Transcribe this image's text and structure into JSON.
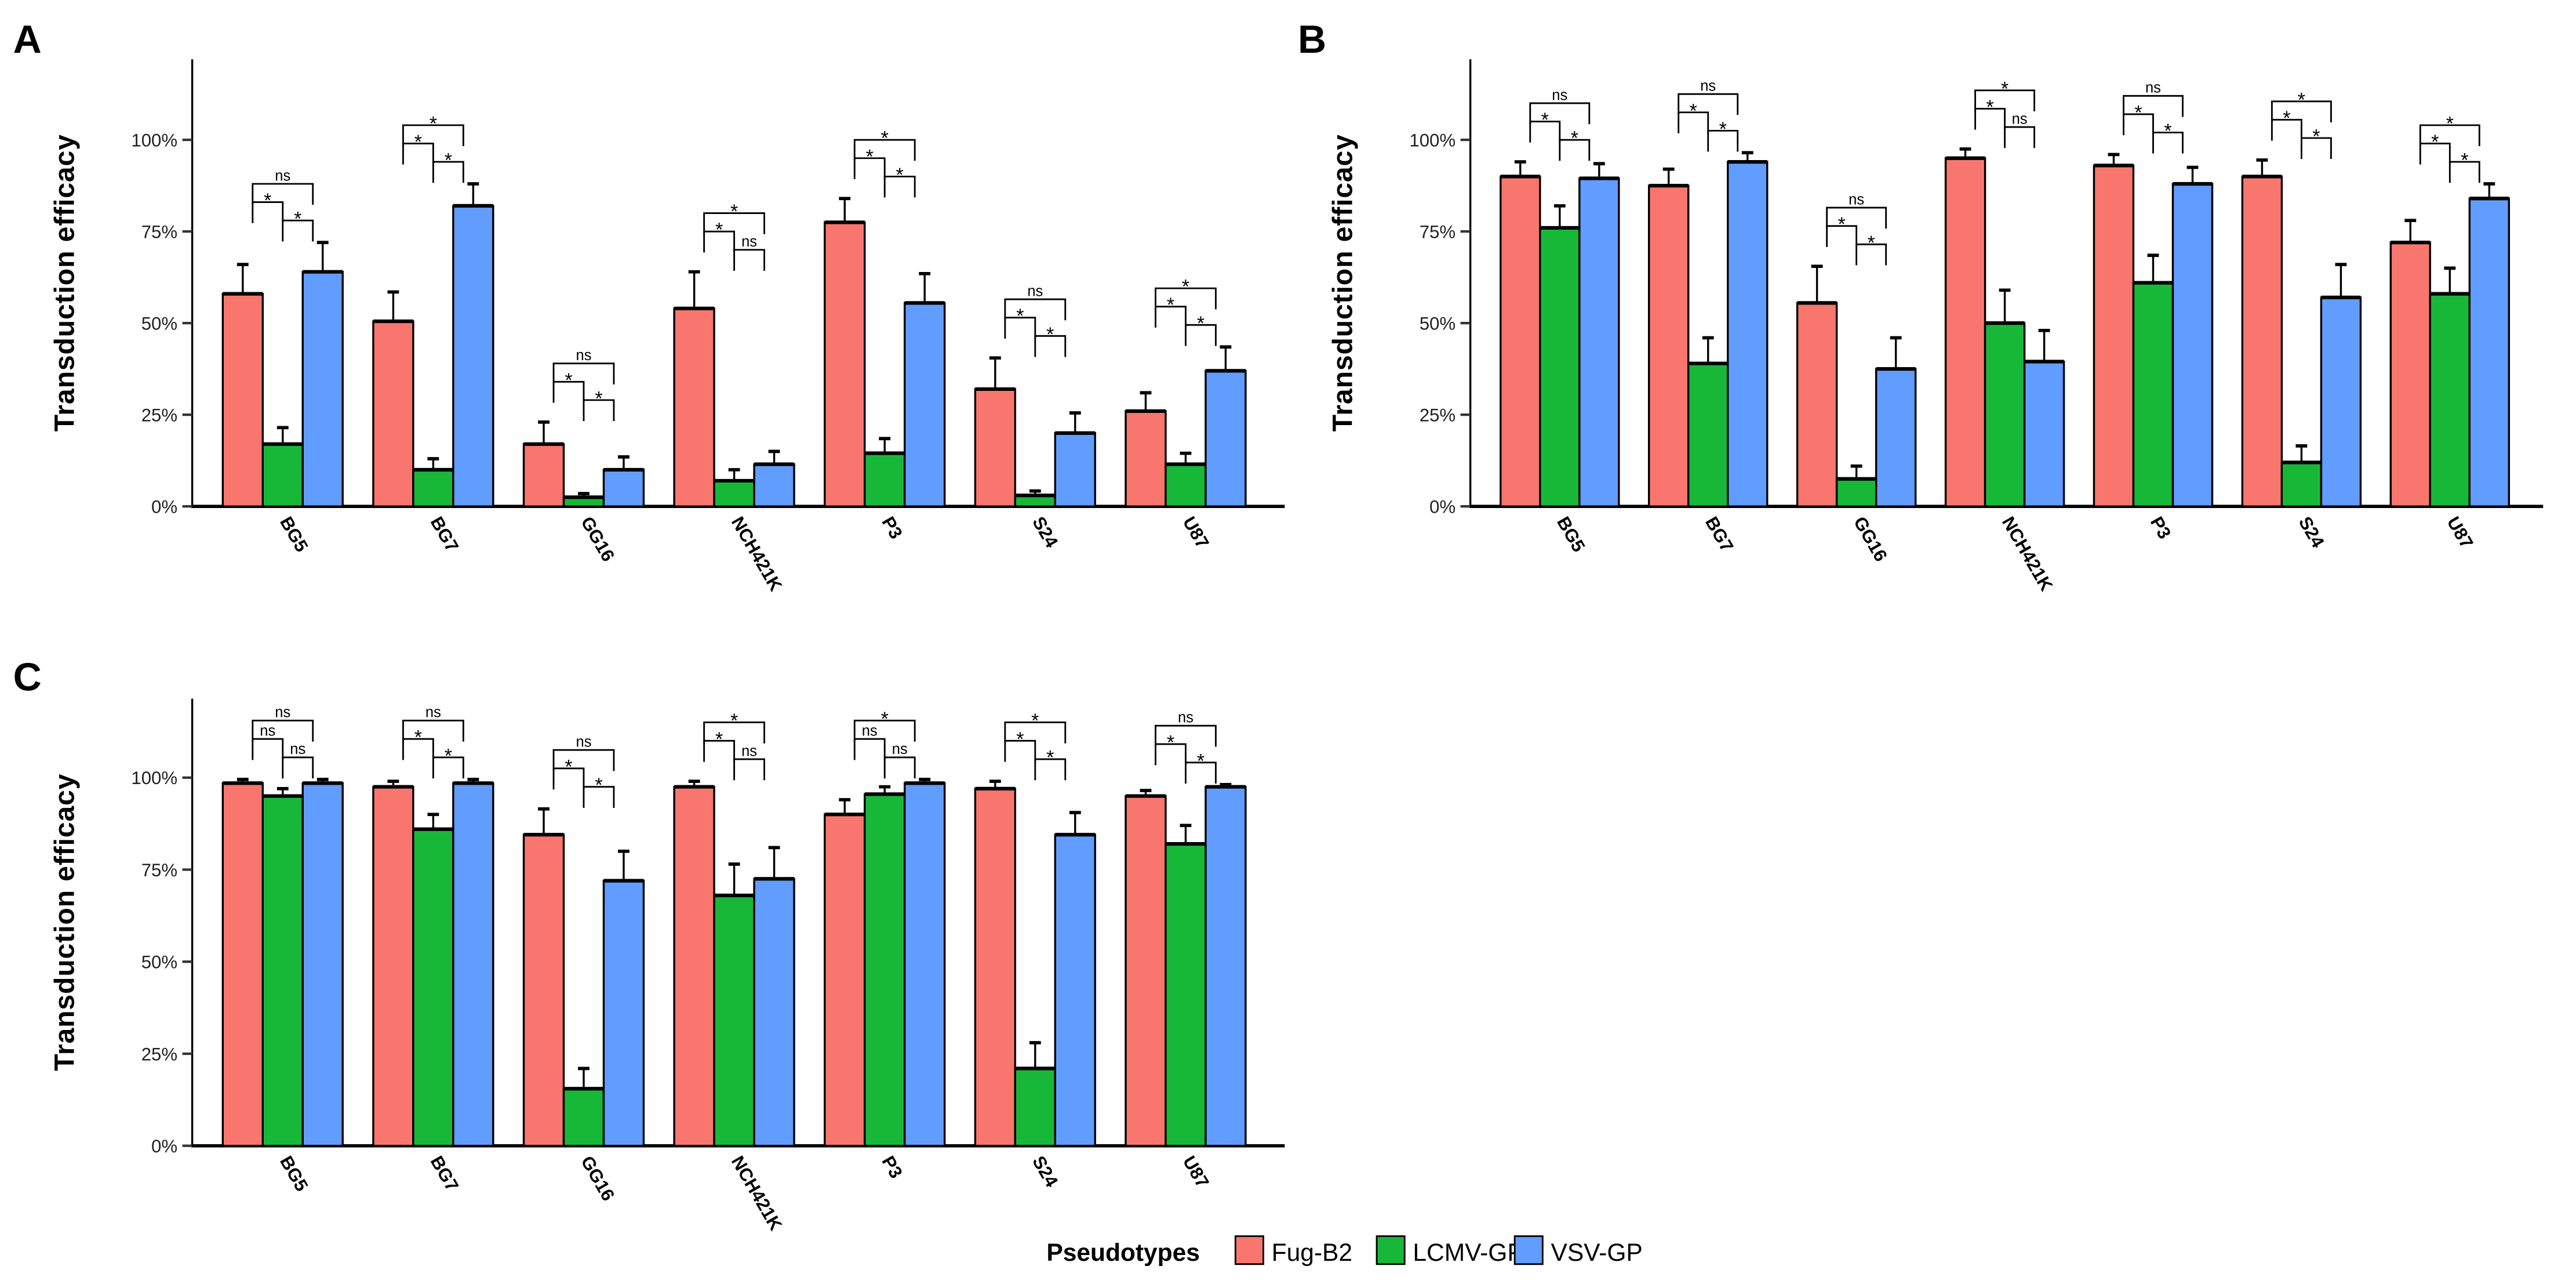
{
  "colors": {
    "Fug-B2": "#F8766D",
    "LCMV-GP": "#17B838",
    "VSV-GP": "#619CFF"
  },
  "legend": {
    "title": "Pseudotypes",
    "items": [
      "Fug-B2",
      "LCMV-GP",
      "VSV-GP"
    ]
  },
  "chart_data": [
    {
      "type": "bar",
      "panel": "A",
      "ylabel": "Transduction efficacy",
      "ylim": [
        0,
        122
      ],
      "yticks": [
        0,
        25,
        50,
        75,
        100
      ],
      "ytick_labels": [
        "0%",
        "25%",
        "50%",
        "75%",
        "100%"
      ],
      "categories": [
        "BG5",
        "BG7",
        "GG16",
        "NCH421K",
        "P3",
        "S24",
        "U87"
      ],
      "series": [
        {
          "name": "Fug-B2",
          "values": [
            58,
            50.5,
            17,
            54,
            77.5,
            32,
            26
          ],
          "errors": [
            8,
            8,
            6,
            10,
            6.5,
            8.5,
            5
          ]
        },
        {
          "name": "LCMV-GP",
          "values": [
            17,
            10,
            2.5,
            7,
            14.5,
            3,
            11.5
          ],
          "errors": [
            4.5,
            3,
            1,
            3,
            4,
            1.2,
            3
          ]
        },
        {
          "name": "VSV-GP",
          "values": [
            64,
            82,
            10,
            11.5,
            55.5,
            20,
            37
          ],
          "errors": [
            8,
            6,
            3.5,
            3.5,
            8,
            5.5,
            6.5
          ]
        }
      ],
      "significance": [
        {
          "pair12": "*",
          "pair23": "*",
          "pair13": "ns"
        },
        {
          "pair12": "*",
          "pair23": "*",
          "pair13": "*"
        },
        {
          "pair12": "*",
          "pair23": "*",
          "pair13": "ns"
        },
        {
          "pair12": "*",
          "pair23": "ns",
          "pair13": "*"
        },
        {
          "pair12": "*",
          "pair23": "*",
          "pair13": "*"
        },
        {
          "pair12": "*",
          "pair23": "*",
          "pair13": "ns"
        },
        {
          "pair12": "*",
          "pair23": "*",
          "pair13": "*"
        }
      ]
    },
    {
      "type": "bar",
      "panel": "B",
      "ylabel": "Transduction efficacy",
      "ylim": [
        0,
        122
      ],
      "yticks": [
        0,
        25,
        50,
        75,
        100
      ],
      "ytick_labels": [
        "0%",
        "25%",
        "50%",
        "75%",
        "100%"
      ],
      "categories": [
        "BG5",
        "BG7",
        "GG16",
        "NCH421K",
        "P3",
        "S24",
        "U87"
      ],
      "series": [
        {
          "name": "Fug-B2",
          "values": [
            90,
            87.5,
            55.5,
            95,
            93,
            90,
            72
          ],
          "errors": [
            4,
            4.5,
            10,
            2.5,
            3,
            4.5,
            6
          ]
        },
        {
          "name": "LCMV-GP",
          "values": [
            76,
            39,
            7.5,
            50,
            61,
            12,
            58
          ],
          "errors": [
            6,
            7,
            3.5,
            9,
            7.5,
            4.5,
            7
          ]
        },
        {
          "name": "VSV-GP",
          "values": [
            89.5,
            94,
            37.5,
            39.5,
            88,
            57,
            84
          ],
          "errors": [
            4,
            2.5,
            8.5,
            8.5,
            4.5,
            9,
            4
          ]
        }
      ],
      "significance": [
        {
          "pair12": "*",
          "pair23": "*",
          "pair13": "ns"
        },
        {
          "pair12": "*",
          "pair23": "*",
          "pair13": "ns"
        },
        {
          "pair12": "*",
          "pair23": "*",
          "pair13": "ns"
        },
        {
          "pair12": "*",
          "pair23": "ns",
          "pair13": "*"
        },
        {
          "pair12": "*",
          "pair23": "*",
          "pair13": "ns"
        },
        {
          "pair12": "*",
          "pair23": "*",
          "pair13": "*"
        },
        {
          "pair12": "*",
          "pair23": "*",
          "pair13": "*"
        }
      ]
    },
    {
      "type": "bar",
      "panel": "C",
      "ylabel": "Transduction efficacy",
      "ylim": [
        0,
        122
      ],
      "yticks": [
        0,
        25,
        50,
        75,
        100
      ],
      "ytick_labels": [
        "0%",
        "25%",
        "50%",
        "75%",
        "100%"
      ],
      "categories": [
        "BG5",
        "BG7",
        "GG16",
        "NCH421K",
        "P3",
        "S24",
        "U87"
      ],
      "series": [
        {
          "name": "Fug-B2",
          "values": [
            98.5,
            97.5,
            84.5,
            97.5,
            90,
            97,
            95
          ],
          "errors": [
            1,
            1.5,
            7,
            1.5,
            4,
            2,
            1.5
          ]
        },
        {
          "name": "LCMV-GP",
          "values": [
            95,
            86,
            15.5,
            68,
            95.5,
            21,
            82
          ],
          "errors": [
            2,
            4,
            5.5,
            8.5,
            2,
            7,
            5
          ]
        },
        {
          "name": "VSV-GP",
          "values": [
            98.5,
            98.5,
            72,
            72.5,
            98.5,
            84.5,
            97.5
          ],
          "errors": [
            1,
            1,
            8,
            8.5,
            1,
            6,
            0.6
          ]
        }
      ],
      "significance": [
        {
          "pair12": "ns",
          "pair23": "ns",
          "pair13": "ns"
        },
        {
          "pair12": "*",
          "pair23": "*",
          "pair13": "ns"
        },
        {
          "pair12": "*",
          "pair23": "*",
          "pair13": "ns"
        },
        {
          "pair12": "*",
          "pair23": "ns",
          "pair13": "*"
        },
        {
          "pair12": "ns",
          "pair23": "ns",
          "pair13": "*"
        },
        {
          "pair12": "*",
          "pair23": "*",
          "pair13": "*"
        },
        {
          "pair12": "*",
          "pair23": "*",
          "pair13": "ns"
        }
      ]
    }
  ]
}
